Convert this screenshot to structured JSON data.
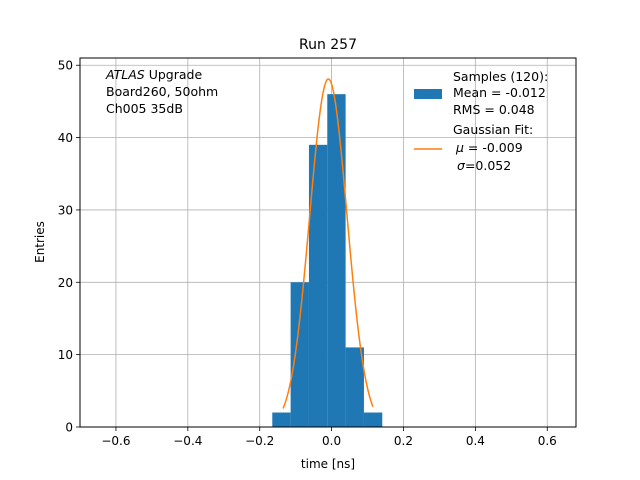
{
  "chart_data": {
    "type": "bar",
    "title": "Run 257",
    "xlabel": "time [ns]",
    "ylabel": "Entries",
    "xlim": [
      -0.7,
      0.68
    ],
    "ylim": [
      0,
      51
    ],
    "grid": true,
    "x_ticks": [
      -0.6,
      -0.4,
      -0.2,
      0.0,
      0.2,
      0.4,
      0.6
    ],
    "x_tick_labels": [
      "−0.6",
      "−0.4",
      "−0.2",
      "0.0",
      "0.2",
      "0.4",
      "0.6"
    ],
    "y_ticks": [
      0,
      10,
      20,
      30,
      40,
      50
    ],
    "y_tick_labels": [
      "0",
      "10",
      "20",
      "30",
      "40",
      "50"
    ],
    "bar_color": "#1f77b4",
    "fit_color": "#ff7f0e",
    "histogram": {
      "bin_edges": [
        -0.165,
        -0.114,
        -0.063,
        -0.012,
        0.039,
        0.09,
        0.141
      ],
      "counts": [
        2,
        20,
        39,
        46,
        11,
        2
      ]
    },
    "fit": {
      "mu": -0.009,
      "sigma": 0.052,
      "amplitude": 48.1,
      "x_range": [
        -0.135,
        0.115
      ]
    },
    "annotation": {
      "italic": "ATLAS",
      "line1_rest": " Upgrade",
      "line2": " Board260, 50ohm",
      "line3": " Ch005 35dB"
    },
    "legend": {
      "position": "top-right",
      "samples": {
        "header": "Samples (120):",
        "mean": " Mean = -0.012",
        "rms": " RMS = 0.048"
      },
      "fit": {
        "header": "Gaussian Fit:",
        "mu_sym": "μ",
        "mu_val": " = -0.009",
        "sigma_sym": "σ",
        "sigma_val": "=0.052"
      }
    }
  }
}
